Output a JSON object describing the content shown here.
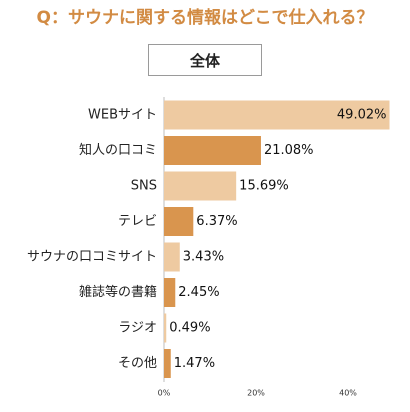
{
  "title": "Q：サウナに関する情報はどこで仕入れる？",
  "segment_label": "全体",
  "chart_data": {
    "type": "bar",
    "orientation": "horizontal",
    "categories": [
      "WEBサイト",
      "知人の口コミ",
      "SNS",
      "テレビ",
      "サウナの口コミサイト",
      "雑誌等の書籍",
      "ラジオ",
      "その他"
    ],
    "values": [
      49.02,
      21.08,
      15.69,
      6.37,
      3.43,
      2.45,
      0.49,
      1.47
    ],
    "data_labels": [
      "49.02%",
      "21.08%",
      "15.69%",
      "6.37%",
      "3.43%",
      "2.45%",
      "0.49%",
      "1.47%"
    ],
    "xlim": [
      0,
      50
    ],
    "x_ticks": [
      0,
      20,
      40
    ],
    "x_tick_labels": [
      "0%",
      "20%",
      "40%"
    ],
    "grid": false,
    "legend": "none",
    "bar_colors": [
      "#eecaa1",
      "#d9954e"
    ],
    "title_color": "#d28b43"
  }
}
